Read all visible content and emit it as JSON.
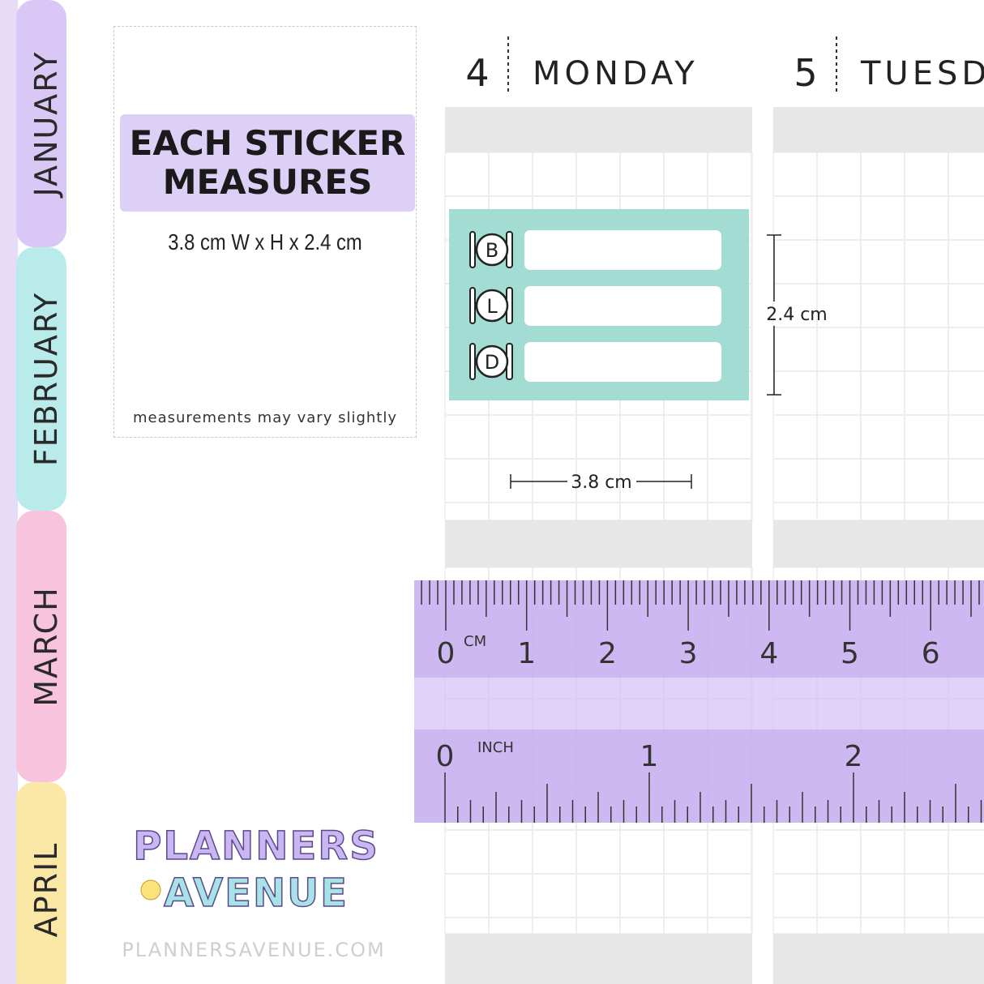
{
  "tabs": [
    "JANUARY",
    "FEBRUARY",
    "MARCH",
    "APRIL"
  ],
  "info": {
    "title": "EACH STICKER MEASURES",
    "size": "3.8 cm W  x  H  x 2.4 cm",
    "note": "measurements may vary slightly"
  },
  "days": [
    {
      "number": "4",
      "name": "MONDAY"
    },
    {
      "number": "5",
      "name": "TUESD"
    }
  ],
  "sticker": {
    "meals": [
      "B",
      "L",
      "D"
    ],
    "height": "2.4 cm",
    "width": "3.8 cm"
  },
  "ruler": {
    "cm_unit": "CM",
    "cm_labels": [
      "0",
      "1",
      "2",
      "3",
      "4",
      "5",
      "6"
    ],
    "inch_unit": "INCH",
    "inch_labels": [
      "0",
      "1",
      "2"
    ]
  },
  "logo": {
    "line1": "PLANNERS",
    "line2": "AVENUE",
    "url": "PLANNERSAVENUE.COM"
  }
}
